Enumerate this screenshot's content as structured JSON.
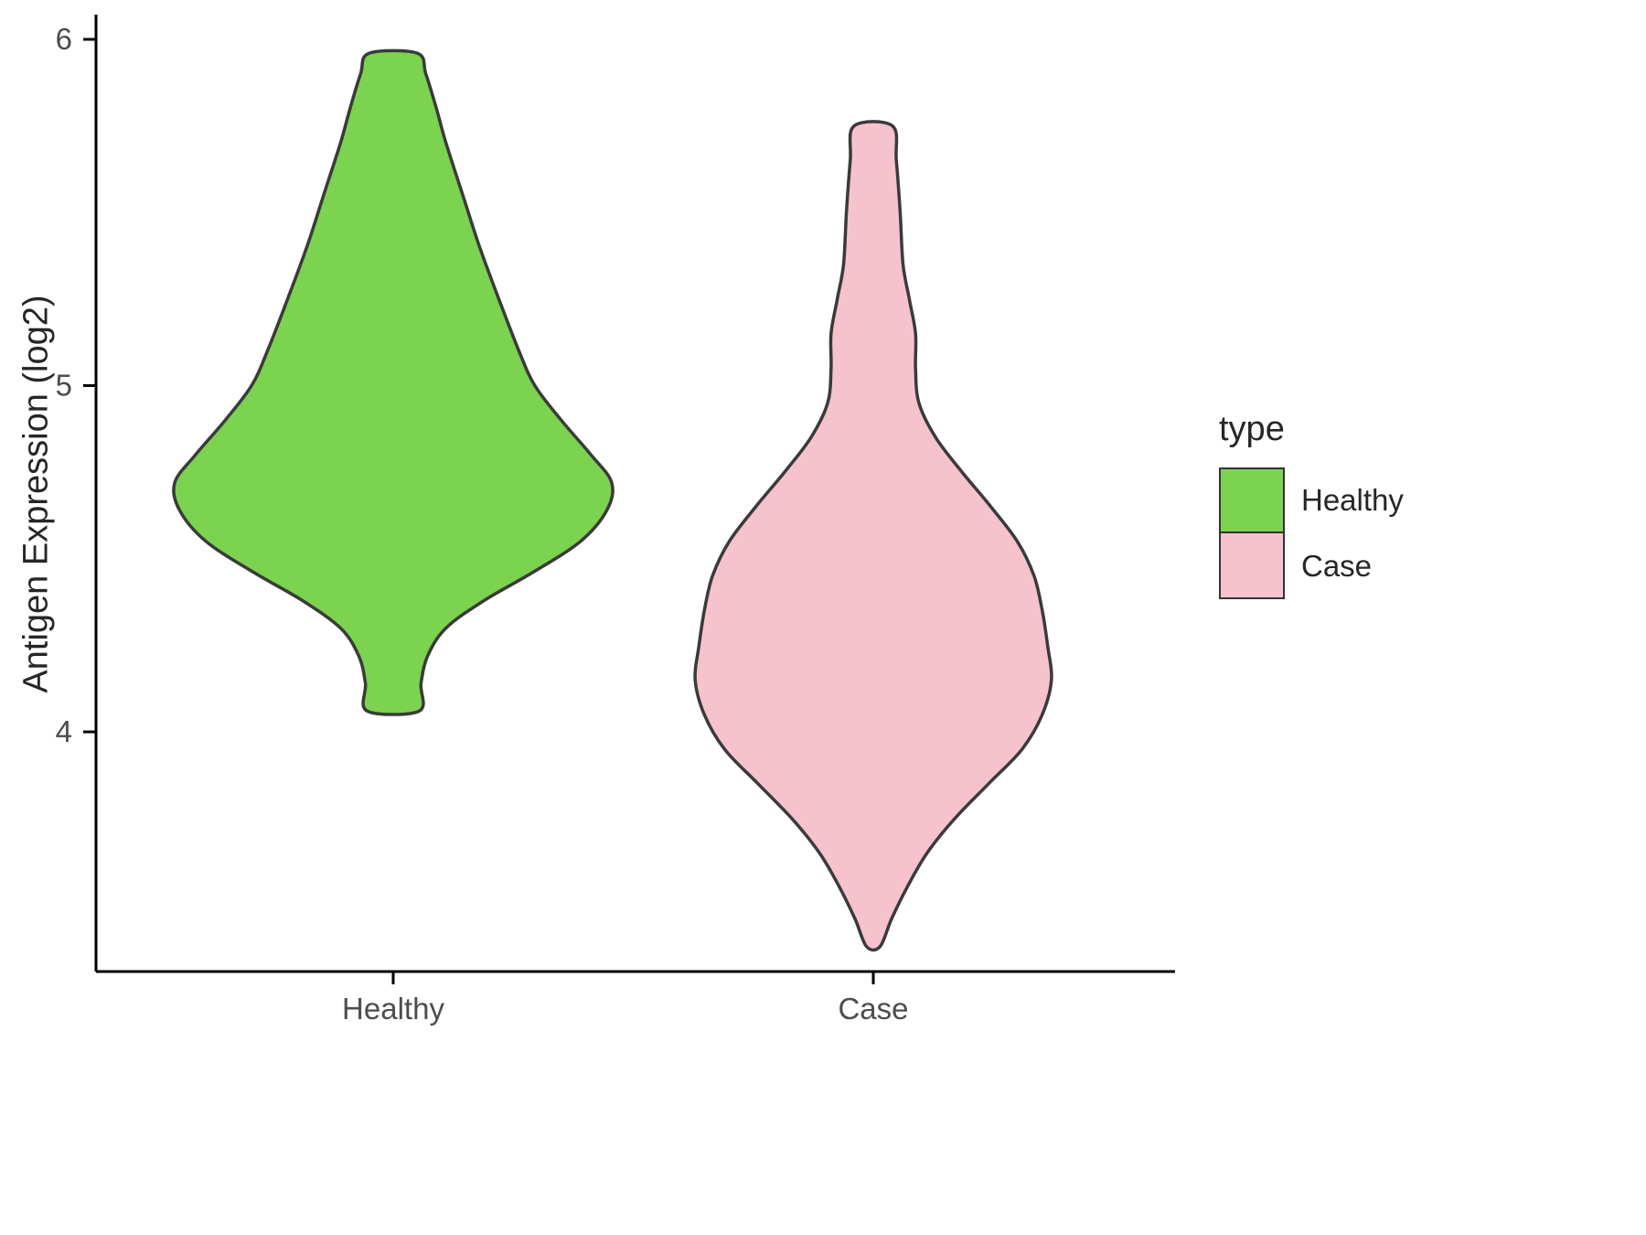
{
  "chart_data": {
    "type": "violin",
    "title": "",
    "xlabel": "",
    "ylabel": "Antigen Expression (log2)",
    "yticks": [
      4,
      5,
      6
    ],
    "ylim": [
      3.2,
      6.1
    ],
    "grid": false,
    "categories": [
      "Healthy",
      "Case"
    ],
    "legend": {
      "title": "type",
      "position": "right",
      "entries": [
        {
          "label": "Healthy",
          "color": "#7BD34F"
        },
        {
          "label": "Case",
          "color": "#F5C2CE"
        }
      ]
    },
    "series": [
      {
        "name": "Healthy",
        "x": 1,
        "fill": "#7BD34F",
        "stroke": "#3A3A3A",
        "y_min": 4.06,
        "y_max": 5.96,
        "profile": [
          [
            5.96,
            0.05
          ],
          [
            5.9,
            0.068
          ],
          [
            5.8,
            0.09
          ],
          [
            5.7,
            0.11
          ],
          [
            5.55,
            0.145
          ],
          [
            5.4,
            0.18
          ],
          [
            5.25,
            0.22
          ],
          [
            5.1,
            0.262
          ],
          [
            5.0,
            0.295
          ],
          [
            4.9,
            0.35
          ],
          [
            4.8,
            0.412
          ],
          [
            4.72,
            0.455
          ],
          [
            4.64,
            0.445
          ],
          [
            4.55,
            0.39
          ],
          [
            4.46,
            0.29
          ],
          [
            4.38,
            0.19
          ],
          [
            4.3,
            0.11
          ],
          [
            4.22,
            0.072
          ],
          [
            4.14,
            0.058
          ],
          [
            4.06,
            0.054
          ]
        ]
      },
      {
        "name": "Case",
        "x": 2,
        "fill": "#F5C2CE",
        "stroke": "#3A3A3A",
        "y_min": 3.38,
        "y_max": 5.75,
        "profile": [
          [
            5.75,
            0.04
          ],
          [
            5.65,
            0.048
          ],
          [
            5.5,
            0.056
          ],
          [
            5.35,
            0.062
          ],
          [
            5.25,
            0.075
          ],
          [
            5.15,
            0.088
          ],
          [
            5.05,
            0.088
          ],
          [
            4.95,
            0.095
          ],
          [
            4.85,
            0.13
          ],
          [
            4.75,
            0.185
          ],
          [
            4.65,
            0.245
          ],
          [
            4.55,
            0.3
          ],
          [
            4.45,
            0.335
          ],
          [
            4.35,
            0.352
          ],
          [
            4.25,
            0.363
          ],
          [
            4.15,
            0.371
          ],
          [
            4.05,
            0.352
          ],
          [
            3.95,
            0.31
          ],
          [
            3.85,
            0.24
          ],
          [
            3.75,
            0.17
          ],
          [
            3.65,
            0.112
          ],
          [
            3.55,
            0.07
          ],
          [
            3.46,
            0.038
          ],
          [
            3.38,
            0.014
          ]
        ]
      }
    ],
    "axis_style": {
      "line_color": "#000000",
      "tick_label_color": "#4D4D4D"
    }
  }
}
